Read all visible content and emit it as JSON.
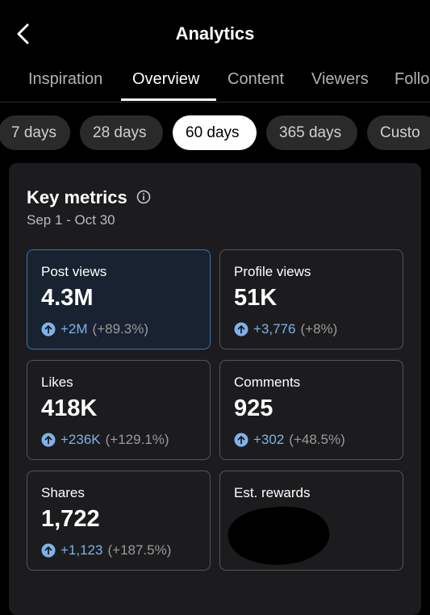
{
  "header": {
    "title": "Analytics"
  },
  "tabs": [
    "Inspiration",
    "Overview",
    "Content",
    "Viewers",
    "Follo"
  ],
  "chips": [
    "7 days",
    "28 days",
    "60 days",
    "365 days",
    "Custo"
  ],
  "card": {
    "title": "Key metrics",
    "date_range": "Sep 1 - Oct 30",
    "metrics": [
      {
        "label": "Post views",
        "value": "4.3M",
        "change": "+2M",
        "percent": "(+89.3%)"
      },
      {
        "label": "Profile views",
        "value": "51K",
        "change": "+3,776",
        "percent": "(+8%)"
      },
      {
        "label": "Likes",
        "value": "418K",
        "change": "+236K",
        "percent": "(+129.1%)"
      },
      {
        "label": "Comments",
        "value": "925",
        "change": "+302",
        "percent": "(+48.5%)"
      },
      {
        "label": "Shares",
        "value": "1,722",
        "change": "+1,123",
        "percent": "(+187.5%)"
      },
      {
        "label": "Est. rewards"
      }
    ]
  }
}
